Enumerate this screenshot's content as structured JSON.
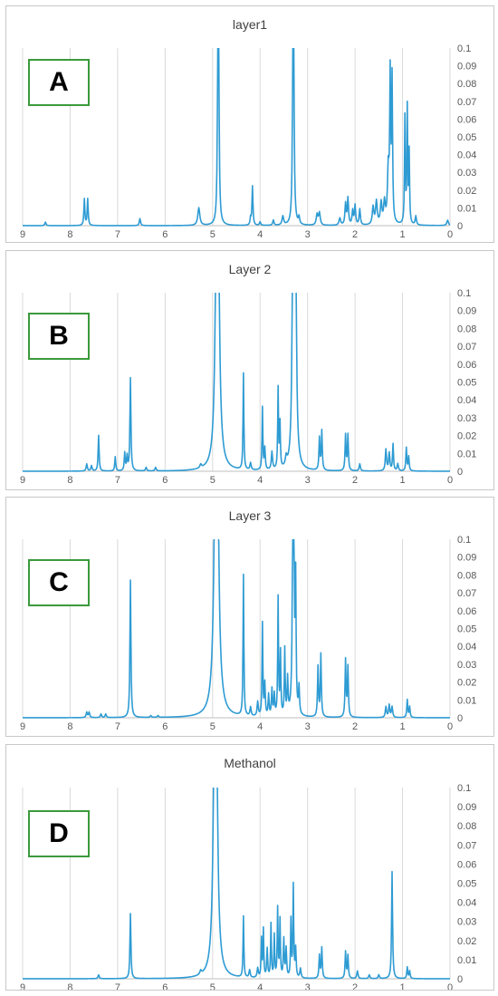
{
  "figure": {
    "panels": [
      {
        "title": "layer1",
        "letter": "A"
      },
      {
        "title": "Layer 2",
        "letter": "B"
      },
      {
        "title": "Layer 3",
        "letter": "C"
      },
      {
        "title": "Methanol",
        "letter": "D"
      }
    ]
  },
  "colors": {
    "line": "#2e9bd3",
    "grid": "#d9d9d9",
    "frame": "#c8c8c8",
    "label_box": "#3b9a3b"
  },
  "chart_data": [
    {
      "type": "line",
      "title": "layer1",
      "xlim": [
        9,
        0
      ],
      "ylim": [
        0,
        0.1
      ],
      "x_ticks": [
        "9",
        "8",
        "7",
        "6",
        "5",
        "4",
        "3",
        "2",
        "1",
        "0"
      ],
      "y_ticks": [
        "0",
        "0.01",
        "0.02",
        "0.03",
        "0.04",
        "0.05",
        "0.06",
        "0.07",
        "0.08",
        "0.09",
        "0.1"
      ],
      "grid": true,
      "peaks": [
        {
          "x": 8.52,
          "h": 0.002,
          "w": 0.015
        },
        {
          "x": 7.7,
          "h": 0.015,
          "w": 0.012
        },
        {
          "x": 7.63,
          "h": 0.015,
          "w": 0.012
        },
        {
          "x": 6.53,
          "h": 0.004,
          "w": 0.015
        },
        {
          "x": 5.29,
          "h": 0.01,
          "w": 0.025
        },
        {
          "x": 4.88,
          "h": 0.3,
          "w": 0.01
        },
        {
          "x": 4.2,
          "h": 0.004,
          "w": 0.012
        },
        {
          "x": 4.16,
          "h": 0.022,
          "w": 0.012
        },
        {
          "x": 4.0,
          "h": 0.002,
          "w": 0.015
        },
        {
          "x": 3.72,
          "h": 0.003,
          "w": 0.015
        },
        {
          "x": 3.52,
          "h": 0.005,
          "w": 0.02
        },
        {
          "x": 3.3,
          "h": 0.3,
          "w": 0.01
        },
        {
          "x": 3.18,
          "h": 0.004,
          "w": 0.015
        },
        {
          "x": 2.8,
          "h": 0.006,
          "w": 0.02
        },
        {
          "x": 2.75,
          "h": 0.007,
          "w": 0.02
        },
        {
          "x": 2.32,
          "h": 0.004,
          "w": 0.02
        },
        {
          "x": 2.2,
          "h": 0.012,
          "w": 0.015
        },
        {
          "x": 2.15,
          "h": 0.015,
          "w": 0.015
        },
        {
          "x": 2.05,
          "h": 0.008,
          "w": 0.015
        },
        {
          "x": 2.0,
          "h": 0.011,
          "w": 0.015
        },
        {
          "x": 1.9,
          "h": 0.009,
          "w": 0.015
        },
        {
          "x": 1.62,
          "h": 0.01,
          "w": 0.02
        },
        {
          "x": 1.55,
          "h": 0.013,
          "w": 0.02
        },
        {
          "x": 1.45,
          "h": 0.012,
          "w": 0.02
        },
        {
          "x": 1.38,
          "h": 0.012,
          "w": 0.02
        },
        {
          "x": 1.3,
          "h": 0.03,
          "w": 0.02
        },
        {
          "x": 1.26,
          "h": 0.08,
          "w": 0.012
        },
        {
          "x": 1.22,
          "h": 0.08,
          "w": 0.012
        },
        {
          "x": 0.95,
          "h": 0.06,
          "w": 0.01
        },
        {
          "x": 0.9,
          "h": 0.065,
          "w": 0.01
        },
        {
          "x": 0.86,
          "h": 0.04,
          "w": 0.01
        },
        {
          "x": 0.72,
          "h": 0.005,
          "w": 0.015
        },
        {
          "x": 0.05,
          "h": 0.003,
          "w": 0.02
        }
      ]
    },
    {
      "type": "line",
      "title": "Layer 2",
      "xlim": [
        9,
        0
      ],
      "ylim": [
        0,
        0.1
      ],
      "x_ticks": [
        "9",
        "8",
        "7",
        "6",
        "5",
        "4",
        "3",
        "2",
        "1",
        "0"
      ],
      "y_ticks": [
        "0",
        "0.01",
        "0.02",
        "0.03",
        "0.04",
        "0.05",
        "0.06",
        "0.07",
        "0.08",
        "0.09",
        "0.1"
      ],
      "grid": true,
      "peaks": [
        {
          "x": 7.65,
          "h": 0.004,
          "w": 0.015
        },
        {
          "x": 7.55,
          "h": 0.003,
          "w": 0.015
        },
        {
          "x": 7.4,
          "h": 0.02,
          "w": 0.012
        },
        {
          "x": 7.05,
          "h": 0.008,
          "w": 0.012
        },
        {
          "x": 6.85,
          "h": 0.01,
          "w": 0.012
        },
        {
          "x": 6.8,
          "h": 0.008,
          "w": 0.012
        },
        {
          "x": 6.73,
          "h": 0.052,
          "w": 0.012
        },
        {
          "x": 6.4,
          "h": 0.002,
          "w": 0.015
        },
        {
          "x": 6.2,
          "h": 0.002,
          "w": 0.015
        },
        {
          "x": 5.25,
          "h": 0.002,
          "w": 0.02
        },
        {
          "x": 4.9,
          "h": 0.3,
          "w": 0.03
        },
        {
          "x": 4.35,
          "h": 0.054,
          "w": 0.01
        },
        {
          "x": 4.2,
          "h": 0.004,
          "w": 0.015
        },
        {
          "x": 3.95,
          "h": 0.035,
          "w": 0.01
        },
        {
          "x": 3.9,
          "h": 0.012,
          "w": 0.012
        },
        {
          "x": 3.75,
          "h": 0.01,
          "w": 0.015
        },
        {
          "x": 3.62,
          "h": 0.045,
          "w": 0.01
        },
        {
          "x": 3.58,
          "h": 0.025,
          "w": 0.01
        },
        {
          "x": 3.45,
          "h": 0.005,
          "w": 0.02
        },
        {
          "x": 3.3,
          "h": 0.3,
          "w": 0.015
        },
        {
          "x": 3.26,
          "h": 0.3,
          "w": 0.015
        },
        {
          "x": 2.75,
          "h": 0.018,
          "w": 0.012
        },
        {
          "x": 2.7,
          "h": 0.022,
          "w": 0.012
        },
        {
          "x": 2.2,
          "h": 0.02,
          "w": 0.012
        },
        {
          "x": 2.15,
          "h": 0.02,
          "w": 0.012
        },
        {
          "x": 1.9,
          "h": 0.004,
          "w": 0.015
        },
        {
          "x": 1.35,
          "h": 0.012,
          "w": 0.015
        },
        {
          "x": 1.28,
          "h": 0.01,
          "w": 0.015
        },
        {
          "x": 1.2,
          "h": 0.015,
          "w": 0.012
        },
        {
          "x": 1.1,
          "h": 0.004,
          "w": 0.015
        },
        {
          "x": 0.92,
          "h": 0.013,
          "w": 0.012
        },
        {
          "x": 0.87,
          "h": 0.008,
          "w": 0.012
        }
      ]
    },
    {
      "type": "line",
      "title": "Layer 3",
      "xlim": [
        9,
        0
      ],
      "ylim": [
        0,
        0.1
      ],
      "x_ticks": [
        "9",
        "8",
        "7",
        "6",
        "5",
        "4",
        "3",
        "2",
        "1",
        "0"
      ],
      "y_ticks": [
        "0",
        "0.01",
        "0.02",
        "0.03",
        "0.04",
        "0.05",
        "0.06",
        "0.07",
        "0.08",
        "0.09",
        "0.1"
      ],
      "grid": true,
      "peaks": [
        {
          "x": 7.65,
          "h": 0.003,
          "w": 0.015
        },
        {
          "x": 7.6,
          "h": 0.003,
          "w": 0.015
        },
        {
          "x": 7.35,
          "h": 0.002,
          "w": 0.015
        },
        {
          "x": 7.25,
          "h": 0.002,
          "w": 0.015
        },
        {
          "x": 6.73,
          "h": 0.077,
          "w": 0.012
        },
        {
          "x": 6.3,
          "h": 0.001,
          "w": 0.015
        },
        {
          "x": 6.15,
          "h": 0.001,
          "w": 0.015
        },
        {
          "x": 4.92,
          "h": 0.3,
          "w": 0.035
        },
        {
          "x": 4.35,
          "h": 0.079,
          "w": 0.01
        },
        {
          "x": 4.2,
          "h": 0.005,
          "w": 0.015
        },
        {
          "x": 4.05,
          "h": 0.008,
          "w": 0.015
        },
        {
          "x": 3.95,
          "h": 0.052,
          "w": 0.01
        },
        {
          "x": 3.9,
          "h": 0.018,
          "w": 0.012
        },
        {
          "x": 3.82,
          "h": 0.012,
          "w": 0.012
        },
        {
          "x": 3.75,
          "h": 0.015,
          "w": 0.012
        },
        {
          "x": 3.7,
          "h": 0.012,
          "w": 0.012
        },
        {
          "x": 3.62,
          "h": 0.066,
          "w": 0.01
        },
        {
          "x": 3.57,
          "h": 0.035,
          "w": 0.01
        },
        {
          "x": 3.48,
          "h": 0.037,
          "w": 0.01
        },
        {
          "x": 3.42,
          "h": 0.02,
          "w": 0.012
        },
        {
          "x": 3.3,
          "h": 0.3,
          "w": 0.012
        },
        {
          "x": 3.25,
          "h": 0.07,
          "w": 0.01
        },
        {
          "x": 3.18,
          "h": 0.015,
          "w": 0.012
        },
        {
          "x": 2.78,
          "h": 0.028,
          "w": 0.012
        },
        {
          "x": 2.72,
          "h": 0.035,
          "w": 0.012
        },
        {
          "x": 2.2,
          "h": 0.032,
          "w": 0.012
        },
        {
          "x": 2.15,
          "h": 0.028,
          "w": 0.012
        },
        {
          "x": 1.35,
          "h": 0.006,
          "w": 0.015
        },
        {
          "x": 1.28,
          "h": 0.007,
          "w": 0.015
        },
        {
          "x": 1.22,
          "h": 0.006,
          "w": 0.015
        },
        {
          "x": 0.9,
          "h": 0.01,
          "w": 0.012
        },
        {
          "x": 0.85,
          "h": 0.006,
          "w": 0.012
        }
      ]
    },
    {
      "type": "line",
      "title": "Methanol",
      "xlim": [
        9,
        0
      ],
      "ylim": [
        0,
        0.1
      ],
      "x_ticks": [
        "9",
        "8",
        "7",
        "6",
        "5",
        "4",
        "3",
        "2",
        "1",
        "0"
      ],
      "y_ticks": [
        "0",
        "0.01",
        "0.02",
        "0.03",
        "0.04",
        "0.05",
        "0.06",
        "0.07",
        "0.08",
        "0.09",
        "0.1"
      ],
      "grid": true,
      "peaks": [
        {
          "x": 7.4,
          "h": 0.002,
          "w": 0.015
        },
        {
          "x": 6.73,
          "h": 0.034,
          "w": 0.012
        },
        {
          "x": 5.25,
          "h": 0.002,
          "w": 0.02
        },
        {
          "x": 4.94,
          "h": 0.3,
          "w": 0.03
        },
        {
          "x": 4.35,
          "h": 0.032,
          "w": 0.01
        },
        {
          "x": 4.22,
          "h": 0.004,
          "w": 0.015
        },
        {
          "x": 4.05,
          "h": 0.005,
          "w": 0.015
        },
        {
          "x": 3.97,
          "h": 0.02,
          "w": 0.01
        },
        {
          "x": 3.93,
          "h": 0.025,
          "w": 0.01
        },
        {
          "x": 3.85,
          "h": 0.015,
          "w": 0.012
        },
        {
          "x": 3.77,
          "h": 0.028,
          "w": 0.01
        },
        {
          "x": 3.7,
          "h": 0.022,
          "w": 0.01
        },
        {
          "x": 3.63,
          "h": 0.036,
          "w": 0.01
        },
        {
          "x": 3.58,
          "h": 0.03,
          "w": 0.01
        },
        {
          "x": 3.5,
          "h": 0.02,
          "w": 0.012
        },
        {
          "x": 3.45,
          "h": 0.015,
          "w": 0.012
        },
        {
          "x": 3.35,
          "h": 0.03,
          "w": 0.01
        },
        {
          "x": 3.3,
          "h": 0.048,
          "w": 0.01
        },
        {
          "x": 3.25,
          "h": 0.015,
          "w": 0.012
        },
        {
          "x": 3.15,
          "h": 0.005,
          "w": 0.015
        },
        {
          "x": 2.75,
          "h": 0.012,
          "w": 0.012
        },
        {
          "x": 2.7,
          "h": 0.016,
          "w": 0.012
        },
        {
          "x": 2.2,
          "h": 0.014,
          "w": 0.012
        },
        {
          "x": 2.15,
          "h": 0.012,
          "w": 0.012
        },
        {
          "x": 1.95,
          "h": 0.004,
          "w": 0.015
        },
        {
          "x": 1.7,
          "h": 0.002,
          "w": 0.015
        },
        {
          "x": 1.5,
          "h": 0.002,
          "w": 0.015
        },
        {
          "x": 1.22,
          "h": 0.056,
          "w": 0.012
        },
        {
          "x": 0.9,
          "h": 0.006,
          "w": 0.012
        },
        {
          "x": 0.85,
          "h": 0.004,
          "w": 0.012
        }
      ]
    }
  ]
}
